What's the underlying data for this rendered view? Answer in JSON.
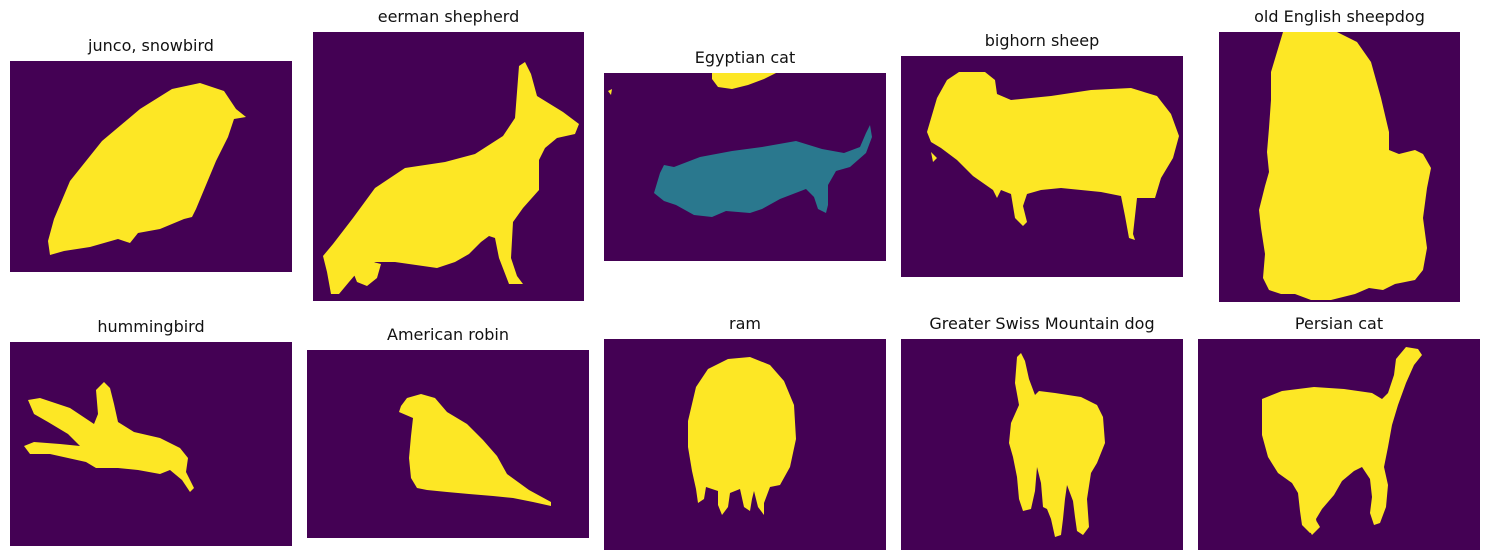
{
  "colors": {
    "background": "#440154",
    "foreground": "#FDE725",
    "mid_class": "#2A788E"
  },
  "panels": [
    {
      "title": "junco, snowbird"
    },
    {
      "title": "eerman shepherd"
    },
    {
      "title": "Egyptian cat"
    },
    {
      "title": "bighorn sheep"
    },
    {
      "title": "old English sheepdog"
    },
    {
      "title": "hummingbird"
    },
    {
      "title": "American robin"
    },
    {
      "title": "ram"
    },
    {
      "title": "Greater Swiss Mountain dog"
    },
    {
      "title": "Persian cat"
    }
  ]
}
